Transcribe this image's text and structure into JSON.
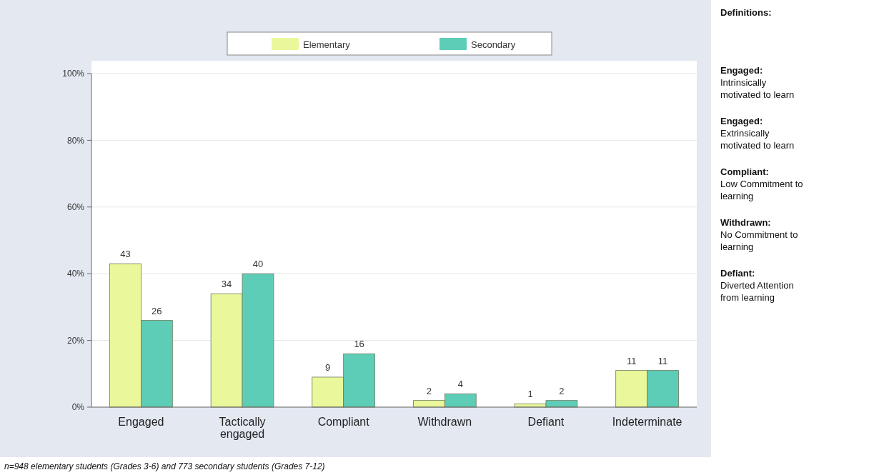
{
  "chart_data": {
    "type": "bar",
    "categories": [
      "Engaged",
      "Tactically engaged",
      "Compliant",
      "Withdrawn",
      "Defiant",
      "Indeterminate"
    ],
    "series": [
      {
        "name": "Elementary",
        "color": "#eaf79a",
        "values": [
          43,
          34,
          9,
          2,
          1,
          11
        ]
      },
      {
        "name": "Secondary",
        "color": "#5ecdb8",
        "values": [
          26,
          40,
          16,
          4,
          2,
          11
        ]
      }
    ],
    "ylim": [
      0,
      100
    ],
    "yticks": [
      {
        "value": 0,
        "label": "0%"
      },
      {
        "value": 20,
        "label": "20%"
      },
      {
        "value": 40,
        "label": "40%"
      },
      {
        "value": 60,
        "label": "60%"
      },
      {
        "value": 80,
        "label": "80%"
      },
      {
        "value": 100,
        "label": "100%"
      }
    ],
    "grid": "y",
    "legend": "top",
    "data_labels": true,
    "annotations": [
      "Definitions:",
      "Engaged: Intrinsically motivated to learn",
      "Engaged: Extrinsically motivated to learn",
      "Compliant: Low Commitment to learning",
      "Withdrawn: No Commitment to learning",
      "Defiant: Diverted Attention from learning",
      "n=948 elementary students (Grades 3-6) and 773 secondary students (Grades 7-12)"
    ]
  }
}
